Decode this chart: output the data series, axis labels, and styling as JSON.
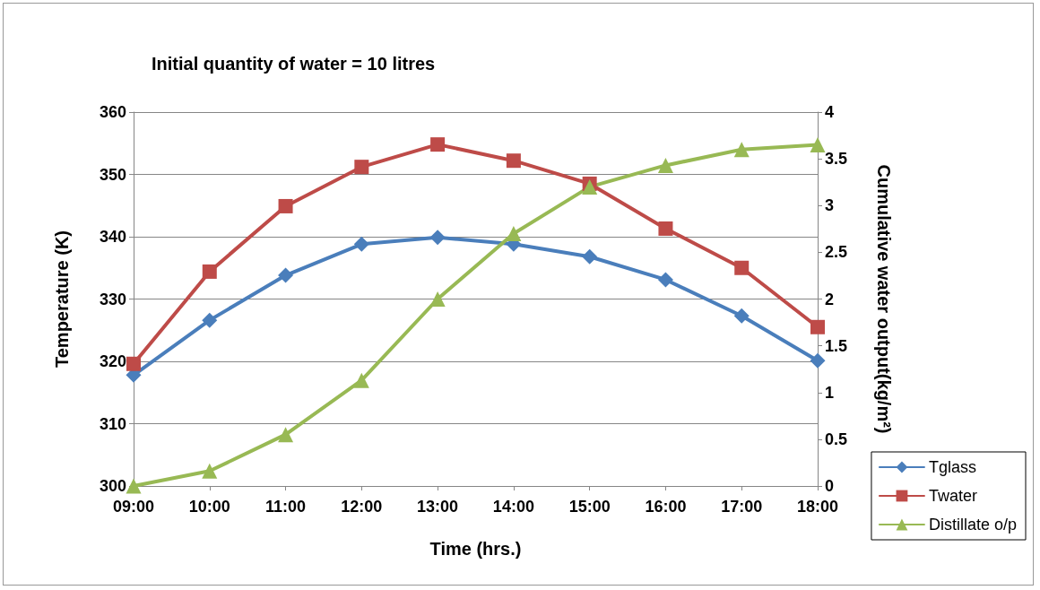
{
  "chart_data": {
    "type": "line",
    "title": "Initial quantity of water = 10 litres",
    "xlabel": "Time (hrs.)",
    "ylabel": "Temperature (K)",
    "y2label": "Cumulative water output(kg/m²)",
    "categories": [
      "09:00",
      "10:00",
      "11:00",
      "12:00",
      "13:00",
      "14:00",
      "15:00",
      "16:00",
      "17:00",
      "18:00"
    ],
    "series": [
      {
        "name": "Tglass",
        "color": "#4a7ebb",
        "marker": "diamond",
        "values": [
          317.8,
          326.6,
          333.8,
          338.8,
          339.9,
          338.8,
          336.8,
          333.1,
          327.3,
          320.1
        ]
      },
      {
        "name": "Twater",
        "color": "#be4b48",
        "marker": "square",
        "values": [
          319.6,
          334.4,
          344.9,
          351.2,
          354.8,
          352.2,
          348.5,
          341.3,
          335.0,
          325.5
        ]
      },
      {
        "name": "Distillate o/p",
        "color": "#98b954",
        "marker": "triangle",
        "axis": "y2",
        "values": [
          0,
          0.16,
          0.55,
          1.13,
          2.0,
          2.7,
          3.2,
          3.43,
          3.6,
          3.65
        ]
      }
    ],
    "ylim": [
      300,
      360
    ],
    "yticks": [
      300,
      310,
      320,
      330,
      340,
      350,
      360
    ],
    "y2lim": [
      0,
      4
    ],
    "y2ticks": [
      0,
      0.5,
      1,
      1.5,
      2,
      2.5,
      3,
      3.5,
      4
    ],
    "grid": "y",
    "legend": "bottom right",
    "line_style": "solid"
  }
}
